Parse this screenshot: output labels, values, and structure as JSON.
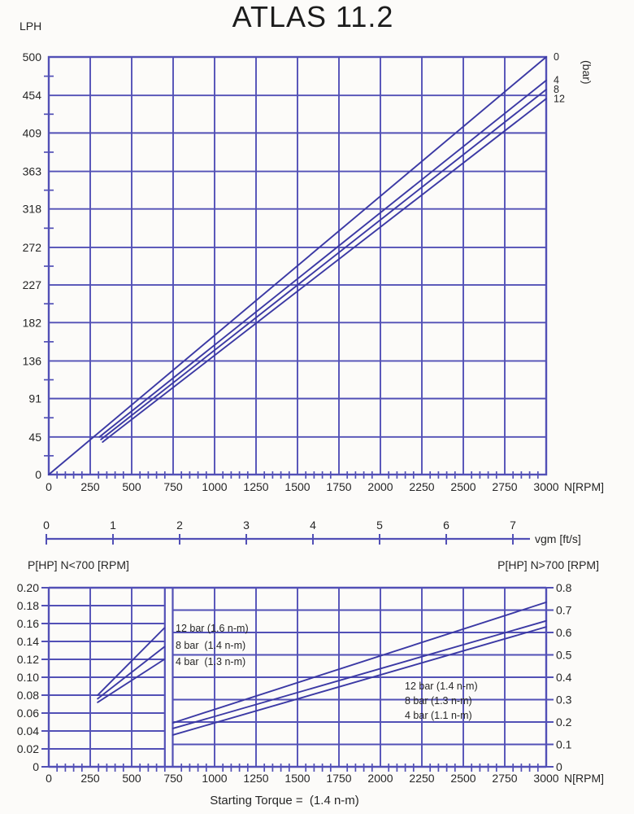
{
  "title": "ATLAS 11.2",
  "colors": {
    "grid": "#5250b6",
    "curve": "#3b39a4",
    "text": "#262626",
    "bg": "#fcfbf9"
  },
  "chart_data": [
    {
      "id": "flow",
      "type": "line",
      "title": "ATLAS 11.2",
      "ylabel": "LPH",
      "xlabel": "N[RPM]",
      "xlim": [
        0,
        3000
      ],
      "ylim": [
        0,
        500
      ],
      "grid": true,
      "x_tick_labels": [
        "0",
        "250",
        "500",
        "750",
        "1000",
        "1250",
        "1500",
        "1750",
        "2000",
        "2250",
        "2500",
        "2750",
        "3000"
      ],
      "y_tick_labels": [
        "500",
        "454",
        "409",
        "363",
        "318",
        "272",
        "227",
        "182",
        "136",
        "91",
        "45",
        "0"
      ],
      "x_minor_step": 50,
      "series_unit_label": "(bar)",
      "series": [
        {
          "name": "0 bar",
          "end_label": "0",
          "points": [
            [
              0,
              0
            ],
            [
              3000,
              500
            ]
          ]
        },
        {
          "name": "4 bar",
          "end_label": "4",
          "points": [
            [
              305,
              45
            ],
            [
              3000,
              472
            ]
          ]
        },
        {
          "name": "8 bar",
          "end_label": "8",
          "points": [
            [
              315,
              42
            ],
            [
              3000,
              461
            ]
          ]
        },
        {
          "name": "12 bar",
          "end_label": "12",
          "points": [
            [
              325,
              39
            ],
            [
              3000,
              450
            ]
          ]
        }
      ],
      "secondary_axis": {
        "label": "vgm [ft/s]",
        "tick_labels": [
          "0",
          "1",
          "2",
          "3",
          "4",
          "5",
          "6",
          "7"
        ]
      }
    },
    {
      "id": "power",
      "type": "line",
      "xlabel": "N[RPM]",
      "xlim": [
        0,
        3000
      ],
      "x_tick_labels": [
        "0",
        "250",
        "500",
        "750",
        "1000",
        "1250",
        "1500",
        "1750",
        "2000",
        "2250",
        "2500",
        "2750",
        "3000"
      ],
      "x_minor_step": 50,
      "break_rpm": 700,
      "left_axis": {
        "title": "P[HP] N<700 [RPM]",
        "lim": [
          0,
          0.2
        ],
        "tick_labels": [
          "0.20",
          "0.18",
          "0.16",
          "0.14",
          "0.12",
          "0.10",
          "0.08",
          "0.06",
          "0.04",
          "0.02",
          "0"
        ]
      },
      "right_axis": {
        "title": "P[HP] N>700 [RPM]",
        "lim": [
          0,
          0.8
        ],
        "tick_labels": [
          "0.8",
          "0.7",
          "0.6",
          "0.5",
          "0.4",
          "0.3",
          "0.2",
          "0.1",
          "0"
        ]
      },
      "left_series": [
        {
          "name": "12 bar",
          "annotation": "12 bar (1.6 n-m)",
          "points": [
            [
              295,
              0.08
            ],
            [
              697,
              0.155
            ]
          ]
        },
        {
          "name": "8 bar",
          "annotation": "8 bar  (1.4 n-m)",
          "points": [
            [
              295,
              0.076
            ],
            [
              697,
              0.134
            ]
          ]
        },
        {
          "name": "4 bar",
          "annotation": "4 bar  (1.3 n-m)",
          "points": [
            [
              295,
              0.072
            ],
            [
              697,
              0.12
            ]
          ]
        }
      ],
      "right_series": [
        {
          "name": "12 bar",
          "annotation": "12 bar (1.4 n-m)",
          "points": [
            [
              748,
              0.196
            ],
            [
              3000,
              0.735
            ]
          ]
        },
        {
          "name": "8 bar",
          "annotation": "8 bar (1.3 n-m)",
          "points": [
            [
              748,
              0.171
            ],
            [
              3000,
              0.652
            ]
          ]
        },
        {
          "name": "4 bar",
          "annotation": "4 bar (1.1 n-m)",
          "points": [
            [
              748,
              0.142
            ],
            [
              3000,
              0.625
            ]
          ]
        }
      ],
      "caption": "Starting Torque =  (1.4 n-m)"
    }
  ]
}
